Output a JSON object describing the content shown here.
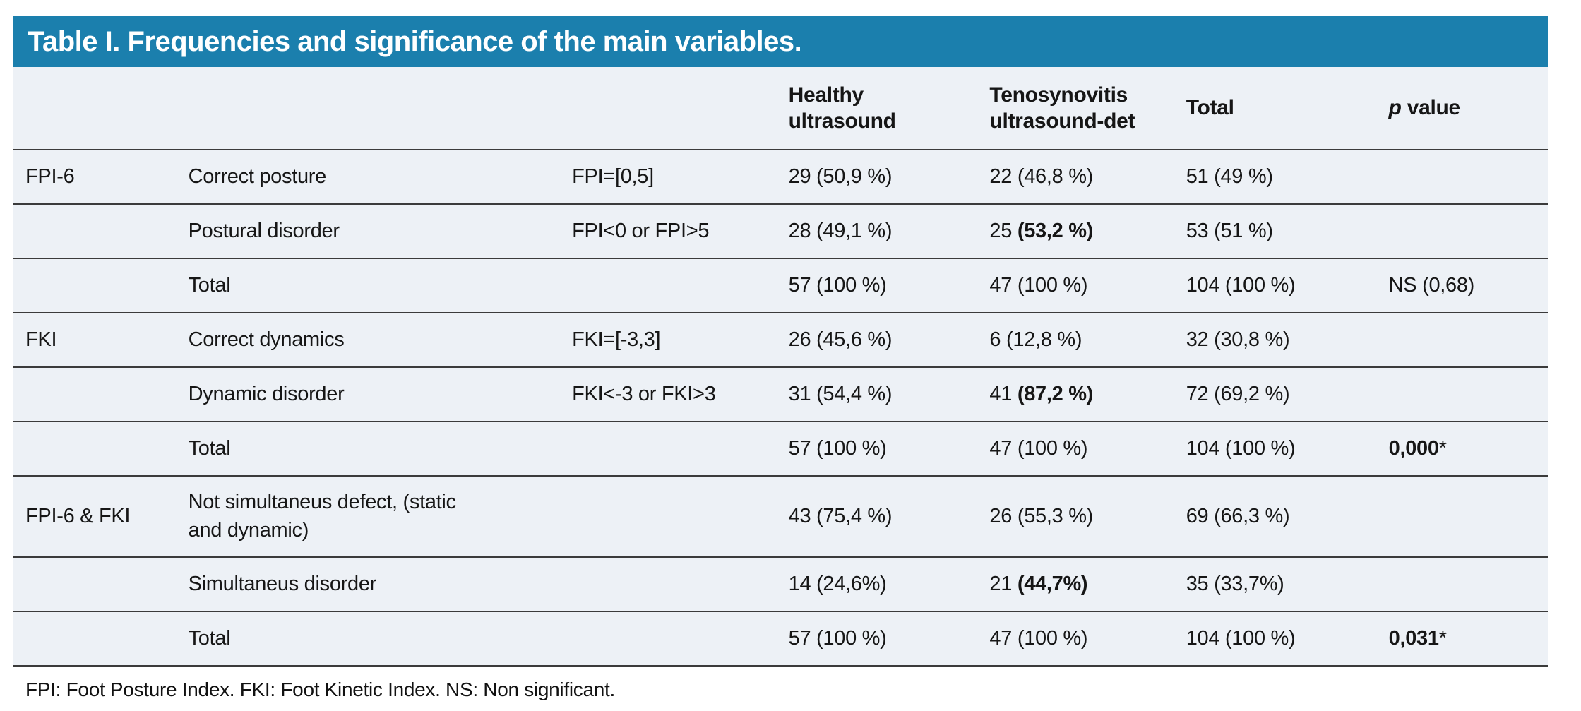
{
  "title": "Table I. Frequencies and significance of the main variables.",
  "colors": {
    "title_bar_bg": "#1B7FAD",
    "title_text": "#FFFFFF",
    "row_bg": "#EDF1F6",
    "border": "#3B3B3B"
  },
  "columns": {
    "healthy": "Healthy\nultrasound",
    "tenosynovitis": "Tenosynovitis\nultrasound-det",
    "total": "Total",
    "p_italic": "p",
    "p_rest": " value"
  },
  "rows": [
    {
      "group": "FPI-6",
      "label": "Correct posture",
      "criteria": "FPI=[0,5]",
      "healthy": "29 (50,9 %)",
      "teno_prefix": "22 (46,8 %)",
      "teno_bold": "",
      "total": "51 (49 %)",
      "p_normal": "",
      "p_bold": "",
      "p_suffix": ""
    },
    {
      "group": "",
      "label": "Postural disorder",
      "criteria": "FPI<0 or FPI>5",
      "healthy": "28 (49,1 %)",
      "teno_prefix": "25 ",
      "teno_bold": "(53,2 %)",
      "total": "53 (51 %)",
      "p_normal": "",
      "p_bold": "",
      "p_suffix": ""
    },
    {
      "group": "",
      "label": "Total",
      "criteria": "",
      "healthy": "57 (100 %)",
      "teno_prefix": "47 (100 %)",
      "teno_bold": "",
      "total": "104 (100 %)",
      "p_normal": "NS (0,68)",
      "p_bold": "",
      "p_suffix": ""
    },
    {
      "group": "FKI",
      "label": "Correct dynamics",
      "criteria": "FKI=[-3,3]",
      "healthy": "26 (45,6 %)",
      "teno_prefix": "6 (12,8 %)",
      "teno_bold": "",
      "total": "32 (30,8 %)",
      "p_normal": "",
      "p_bold": "",
      "p_suffix": ""
    },
    {
      "group": "",
      "label": "Dynamic disorder",
      "criteria": "FKI<-3 or FKI>3",
      "healthy": "31 (54,4 %)",
      "teno_prefix": "41 ",
      "teno_bold": "(87,2 %)",
      "total": "72 (69,2 %)",
      "p_normal": "",
      "p_bold": "",
      "p_suffix": ""
    },
    {
      "group": "",
      "label": "Total",
      "criteria": "",
      "healthy": "57 (100 %)",
      "teno_prefix": "47 (100 %)",
      "teno_bold": "",
      "total": "104 (100 %)",
      "p_normal": "",
      "p_bold": "0,000",
      "p_suffix": "*"
    },
    {
      "group": "FPI-6 & FKI",
      "label": "Not simultaneus defect, (static\nand dynamic)",
      "criteria": "",
      "healthy": "43 (75,4 %)",
      "teno_prefix": "26 (55,3 %)",
      "teno_bold": "",
      "total": "69 (66,3 %)",
      "p_normal": "",
      "p_bold": "",
      "p_suffix": ""
    },
    {
      "group": "",
      "label": "Simultaneus disorder",
      "criteria": "",
      "healthy": "14 (24,6%)",
      "teno_prefix": "21 ",
      "teno_bold": "(44,7%)",
      "total": "35 (33,7%)",
      "p_normal": "",
      "p_bold": "",
      "p_suffix": ""
    },
    {
      "group": "",
      "label": "Total",
      "criteria": "",
      "healthy": "57 (100 %)",
      "teno_prefix": "47 (100 %)",
      "teno_bold": "",
      "total": "104 (100 %)",
      "p_normal": "",
      "p_bold": "0,031",
      "p_suffix": "*"
    }
  ],
  "footnote": "FPI: Foot Posture Index. FKI: Foot Kinetic Index. NS: Non significant."
}
